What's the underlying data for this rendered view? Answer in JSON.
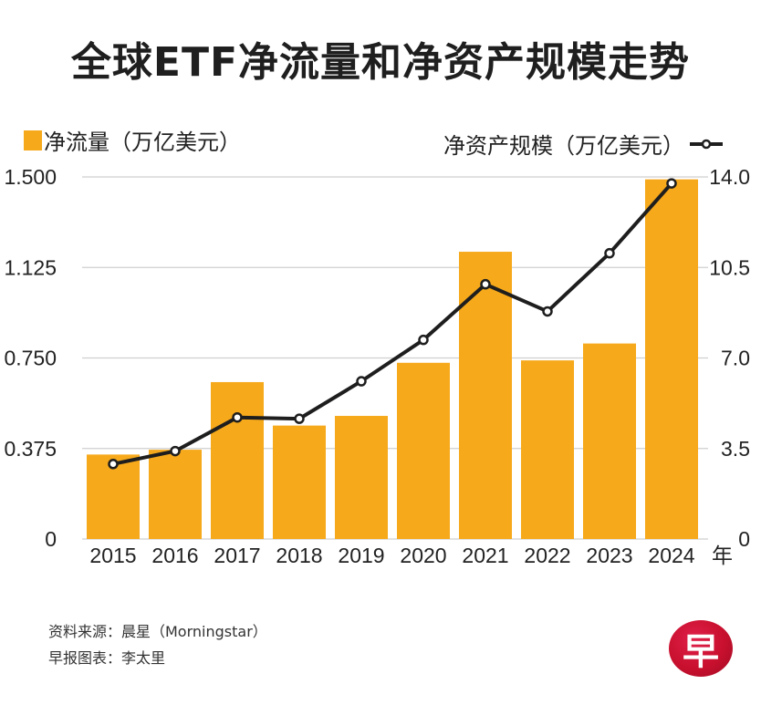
{
  "title": "全球ETF净流量和净资产规模走势",
  "legend": {
    "bar_label": "净流量（万亿美元）",
    "line_label": "净资产规模（万亿美元）"
  },
  "colors": {
    "bar": "#F6A91B",
    "line": "#1e1e1e",
    "marker_fill": "#ffffff",
    "grid": "#cfcfcf",
    "logo": "#c8102e"
  },
  "chart_data": {
    "type": "bar",
    "title": "全球ETF净流量和净资产规模走势",
    "categories": [
      "2015",
      "2016",
      "2017",
      "2018",
      "2019",
      "2020",
      "2021",
      "2022",
      "2023",
      "2024"
    ],
    "xlabel": "年",
    "series": [
      {
        "name": "净流量（万亿美元）",
        "type": "bar",
        "axis": "left",
        "values": [
          0.35,
          0.37,
          0.65,
          0.47,
          0.51,
          0.73,
          1.19,
          0.74,
          0.81,
          1.49
        ]
      },
      {
        "name": "净资产规模（万亿美元）",
        "type": "line",
        "axis": "right",
        "values": [
          2.9,
          3.4,
          4.7,
          4.65,
          6.1,
          7.7,
          9.85,
          8.8,
          11.05,
          13.75
        ]
      }
    ],
    "y_left": {
      "label": "净流量（万亿美元）",
      "ylim": [
        0,
        1.5
      ],
      "ticks": [
        "0",
        "0.375",
        "0.750",
        "1.125",
        "1.500"
      ],
      "tick_values": [
        0,
        0.375,
        0.75,
        1.125,
        1.5
      ]
    },
    "y_right": {
      "label": "净资产规模（万亿美元）",
      "ylim": [
        0,
        14.0
      ],
      "ticks": [
        "0",
        "3.5",
        "7.0",
        "10.5",
        "14.0"
      ],
      "tick_values": [
        0,
        3.5,
        7.0,
        10.5,
        14.0
      ]
    },
    "grid": true,
    "legend": [
      "top-left",
      "top-right"
    ]
  },
  "footer": {
    "source": "资料来源：晨星（Morningstar）",
    "credit": "早报图表：李太里"
  },
  "logo": {
    "glyph": "早",
    "icon": "zaobao-logo-icon"
  }
}
